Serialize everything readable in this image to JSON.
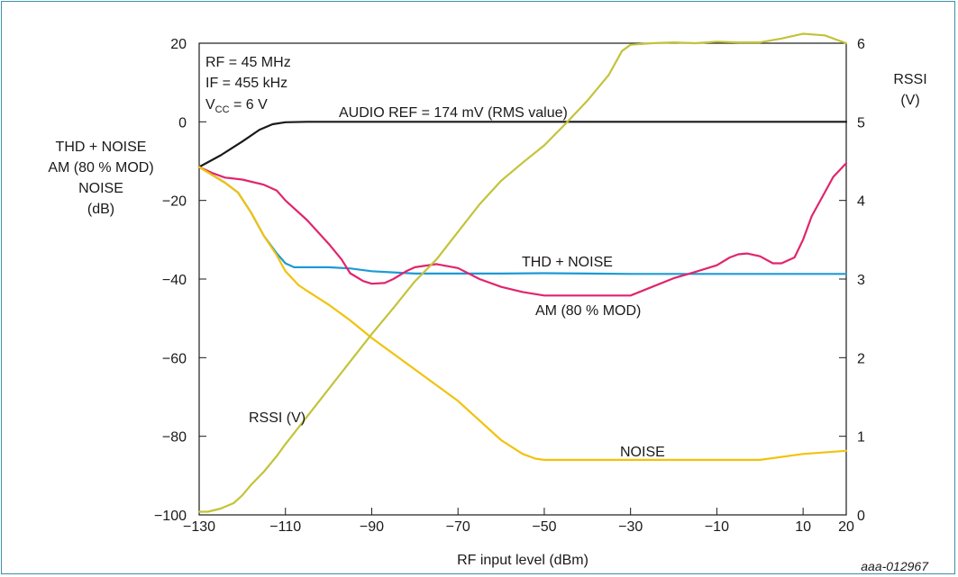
{
  "figure_id": "aaa-012967",
  "conditions": [
    "RF = 45 MHz",
    "IF = 455 kHz",
    "V",
    "CC",
    " = 6 V"
  ],
  "chart_data": {
    "type": "line",
    "xlabel": "RF input level (dBm)",
    "ylabel_left": [
      "THD + NOISE",
      "AM (80 % MOD)",
      "NOISE",
      "(dB)"
    ],
    "ylabel_right": [
      "RSSI",
      "(V)"
    ],
    "xlim": [
      -130,
      20
    ],
    "ylim_left": [
      -100,
      20
    ],
    "ylim_right": [
      0,
      6
    ],
    "x_ticks": [
      -130,
      -110,
      -90,
      -70,
      -50,
      -30,
      -10,
      10,
      20
    ],
    "y_ticks_left": [
      -100,
      -80,
      -60,
      -40,
      -20,
      0,
      20
    ],
    "y_ticks_right": [
      0,
      1,
      2,
      3,
      4,
      5,
      6
    ],
    "x_tick_labels": [
      "−130",
      "−110",
      "−90",
      "−70",
      "−50",
      "−30",
      "−10",
      "10",
      "20"
    ],
    "y_tick_labels_left": [
      "−100",
      "−80",
      "−60",
      "−40",
      "−20",
      "0",
      "20"
    ],
    "y_tick_labels_right": [
      "0",
      "1",
      "2",
      "3",
      "4",
      "5",
      "6"
    ],
    "grid": false,
    "series": [
      {
        "name": "AUDIO REF = 174 mV (RMS value)",
        "axis": "left",
        "color": "#1a1a1a",
        "x": [
          -130,
          -125,
          -120,
          -116,
          -113,
          -110,
          -105,
          -100,
          -90,
          -70,
          -50,
          -30,
          -10,
          0,
          10,
          20
        ],
        "y": [
          -11.5,
          -8.5,
          -5,
          -2,
          -0.6,
          -0.1,
          0,
          0,
          0,
          0,
          0,
          0,
          0,
          0,
          0,
          0
        ]
      },
      {
        "name": "THD + NOISE",
        "axis": "left",
        "color": "#1c9ad6",
        "x": [
          -130,
          -127,
          -124,
          -121,
          -118,
          -115,
          -112,
          -110,
          -108,
          -105,
          -100,
          -95,
          -90,
          -85,
          -80,
          -70,
          -60,
          -50,
          -40,
          -30,
          -20,
          -10,
          0,
          10,
          20
        ],
        "y": [
          -11.5,
          -13.5,
          -15.5,
          -18,
          -23,
          -29,
          -33.5,
          -36,
          -37,
          -37,
          -37,
          -37.3,
          -38,
          -38.3,
          -38.6,
          -38.6,
          -38.6,
          -38.5,
          -38.6,
          -38.7,
          -38.7,
          -38.7,
          -38.7,
          -38.7,
          -38.7
        ]
      },
      {
        "name": "AM (80 % MOD)",
        "axis": "left",
        "color": "#e0256d",
        "x": [
          -130,
          -127,
          -124,
          -120,
          -115,
          -112,
          -110,
          -105,
          -100,
          -97,
          -95,
          -92,
          -90,
          -87,
          -85,
          -82,
          -80,
          -75,
          -70,
          -65,
          -60,
          -55,
          -50,
          -40,
          -30,
          -25,
          -20,
          -15,
          -10,
          -7,
          -5,
          -3,
          0,
          3,
          5,
          8,
          10,
          12,
          15,
          17,
          20
        ],
        "y": [
          -11.5,
          -13,
          -14.2,
          -14.7,
          -16,
          -17.5,
          -20,
          -25,
          -31,
          -35,
          -38.5,
          -40.5,
          -41.2,
          -41,
          -40,
          -38,
          -37,
          -36.2,
          -37.2,
          -40,
          -42,
          -43.3,
          -44.2,
          -44.2,
          -44.2,
          -42,
          -39.8,
          -38.2,
          -36.5,
          -34.5,
          -33.7,
          -33.5,
          -34.2,
          -36,
          -36,
          -34.5,
          -30,
          -24,
          -18,
          -14,
          -10.5
        ]
      },
      {
        "name": "NOISE",
        "axis": "left",
        "color": "#f2c20c",
        "x": [
          -130,
          -127,
          -124,
          -121,
          -118,
          -115,
          -112,
          -110,
          -107,
          -105,
          -100,
          -95,
          -90,
          -80,
          -70,
          -65,
          -60,
          -55,
          -52,
          -50,
          -40,
          -30,
          -20,
          -10,
          0,
          10,
          20
        ],
        "y": [
          -11.5,
          -13.5,
          -15.5,
          -18,
          -23,
          -29,
          -34,
          -38,
          -41.5,
          -43,
          -46.5,
          -50.5,
          -55,
          -63,
          -71,
          -76,
          -81,
          -84.5,
          -85.7,
          -86,
          -86,
          -86,
          -86,
          -86,
          -86,
          -84.5,
          -83.7
        ]
      },
      {
        "name": "RSSI (V)",
        "axis": "right",
        "color": "#c3c33a",
        "x": [
          -130,
          -128,
          -125,
          -122,
          -120,
          -118,
          -115,
          -112,
          -110,
          -105,
          -100,
          -95,
          -90,
          -85,
          -80,
          -75,
          -70,
          -65,
          -60,
          -55,
          -50,
          -45,
          -40,
          -35,
          -32,
          -30,
          -25,
          -20,
          -15,
          -10,
          -5,
          0,
          5,
          10,
          15,
          20
        ],
        "y": [
          0.04,
          0.04,
          0.08,
          0.15,
          0.25,
          0.38,
          0.55,
          0.75,
          0.9,
          1.25,
          1.6,
          1.95,
          2.3,
          2.63,
          2.97,
          3.25,
          3.6,
          3.95,
          4.25,
          4.48,
          4.7,
          4.98,
          5.27,
          5.6,
          5.9,
          5.98,
          6.0,
          6.01,
          6.0,
          6.02,
          6.01,
          6.01,
          6.06,
          6.12,
          6.1,
          6.0
        ]
      }
    ],
    "annotations": [
      {
        "text": "AUDIO REF = 174 mV (RMS value)",
        "x": -87,
        "y": 1.3
      },
      {
        "text": "THD + NOISE",
        "x": -51,
        "y": -35
      },
      {
        "text": "AM (80 % MOD)",
        "x": -43,
        "y": -49
      },
      {
        "text": "NOISE",
        "x": -32,
        "y": -84
      },
      {
        "text": "RSSI (V)",
        "x": -123,
        "y": -76
      }
    ]
  }
}
